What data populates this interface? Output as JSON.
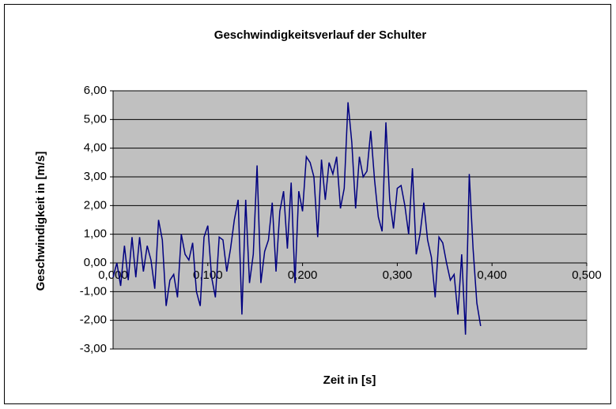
{
  "chart_data": {
    "type": "line",
    "title": "Geschwindigkeitsverlauf der Schulter",
    "xlabel": "Zeit in [s]",
    "ylabel": "Geschwindigkeit in [m/s]",
    "x": [
      0.0,
      0.004,
      0.008,
      0.012,
      0.016,
      0.02,
      0.024,
      0.028,
      0.032,
      0.036,
      0.04,
      0.044,
      0.048,
      0.052,
      0.056,
      0.06,
      0.064,
      0.068,
      0.072,
      0.076,
      0.08,
      0.084,
      0.088,
      0.092,
      0.096,
      0.1,
      0.104,
      0.108,
      0.112,
      0.116,
      0.12,
      0.124,
      0.128,
      0.132,
      0.136,
      0.14,
      0.144,
      0.148,
      0.152,
      0.156,
      0.16,
      0.164,
      0.168,
      0.172,
      0.176,
      0.18,
      0.184,
      0.188,
      0.192,
      0.196,
      0.2,
      0.204,
      0.208,
      0.212,
      0.216,
      0.22,
      0.224,
      0.228,
      0.232,
      0.236,
      0.24,
      0.244,
      0.248,
      0.252,
      0.256,
      0.26,
      0.264,
      0.268,
      0.272,
      0.276,
      0.28,
      0.284,
      0.288,
      0.292,
      0.296,
      0.3,
      0.304,
      0.308,
      0.312,
      0.316,
      0.32,
      0.324,
      0.328,
      0.332,
      0.336,
      0.34,
      0.344,
      0.348,
      0.352,
      0.356,
      0.36,
      0.364,
      0.368,
      0.372,
      0.376,
      0.38,
      0.384,
      0.388
    ],
    "series": [
      {
        "name": "Geschwindigkeit",
        "color": "#000080",
        "values": [
          -0.5,
          0.0,
          -0.8,
          0.6,
          -0.6,
          0.9,
          -0.5,
          0.9,
          -0.3,
          0.6,
          0.1,
          -0.9,
          1.5,
          0.8,
          -1.5,
          -0.6,
          -0.4,
          -1.2,
          1.0,
          0.3,
          0.1,
          0.7,
          -1.0,
          -1.5,
          0.9,
          1.3,
          -0.5,
          -1.2,
          0.9,
          0.8,
          -0.3,
          0.5,
          1.5,
          2.2,
          -1.8,
          2.2,
          -0.7,
          0.3,
          3.4,
          -0.7,
          0.4,
          0.8,
          2.1,
          -0.3,
          1.8,
          2.5,
          0.5,
          2.8,
          -0.7,
          2.5,
          1.8,
          3.7,
          3.5,
          3.0,
          0.9,
          3.6,
          2.2,
          3.5,
          3.1,
          3.7,
          1.9,
          2.6,
          5.6,
          4.2,
          1.9,
          3.7,
          3.0,
          3.2,
          4.6,
          2.9,
          1.6,
          1.1,
          4.9,
          2.2,
          1.2,
          2.6,
          2.7,
          2.0,
          1.0,
          3.3,
          0.3,
          1.0,
          2.1,
          0.8,
          0.2,
          -1.2,
          0.9,
          0.7,
          0.0,
          -0.6,
          -0.4,
          -1.8,
          0.3,
          -2.5,
          3.1,
          0.5,
          -1.4,
          -2.2
        ]
      }
    ],
    "xlim": [
      0,
      0.5
    ],
    "xticks": [
      {
        "value": 0,
        "label": "0,000"
      },
      {
        "value": 0.1,
        "label": "0,100"
      },
      {
        "value": 0.2,
        "label": "0,200"
      },
      {
        "value": 0.3,
        "label": "0,300"
      },
      {
        "value": 0.4,
        "label": "0,400"
      },
      {
        "value": 0.5,
        "label": "0,500"
      }
    ],
    "ylim": [
      -3,
      6
    ],
    "yticks": [
      {
        "value": -3,
        "label": "-3,00"
      },
      {
        "value": -2,
        "label": "-2,00"
      },
      {
        "value": -1,
        "label": "-1,00"
      },
      {
        "value": 0,
        "label": "0,00"
      },
      {
        "value": 1,
        "label": "1,00"
      },
      {
        "value": 2,
        "label": "2,00"
      },
      {
        "value": 3,
        "label": "3,00"
      },
      {
        "value": 4,
        "label": "4,00"
      },
      {
        "value": 5,
        "label": "5,00"
      },
      {
        "value": 6,
        "label": "6,00"
      }
    ],
    "grid": true,
    "background": "#c0c0c0"
  }
}
